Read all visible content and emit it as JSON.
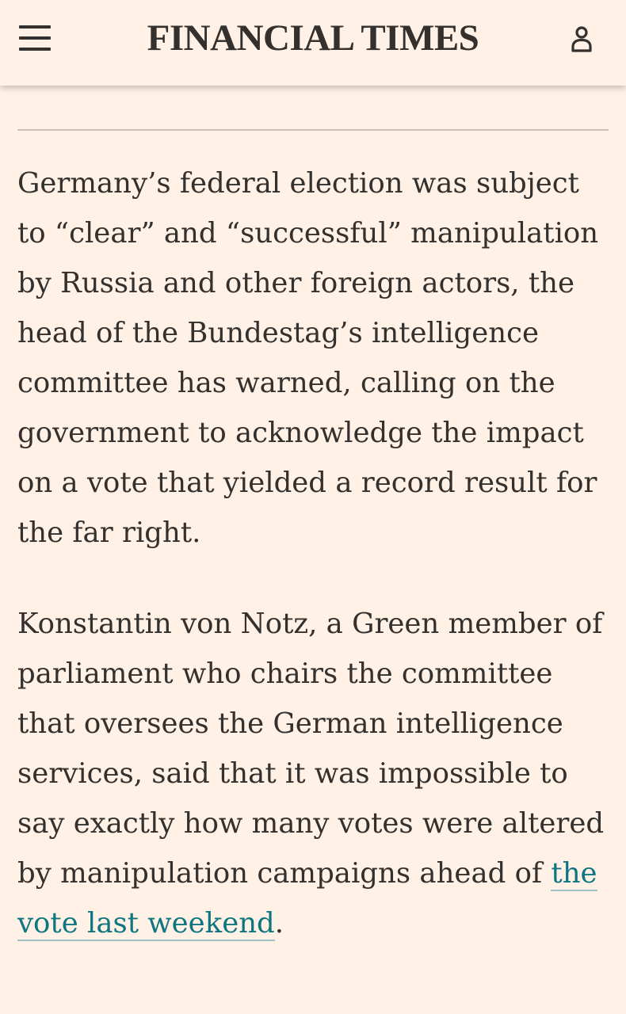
{
  "header": {
    "menu_icon": "hamburger-menu-icon",
    "logo_text": "FINANCIAL TIMES",
    "account_icon": "user-account-icon"
  },
  "article": {
    "paragraph1": "Germany’s federal election was subject to “clear” and “successful” manipulation by Russia and other foreign actors, the head of the Bundestag’s intelligence committee has warned, calling on the government to acknowledge the impact on a vote that yielded a record result for the far right.",
    "paragraph2_text": "Konstantin von Notz, a Green member of parliament who chairs the committee that oversees the German intelligence services, said that it was impossible to say exactly how many votes were altered by manipulation campaigns ahead of ",
    "paragraph2_link": "the vote last weekend",
    "paragraph2_end": "."
  },
  "colors": {
    "background": "#fff1e5",
    "text": "#33302e",
    "link": "#0d7680"
  }
}
